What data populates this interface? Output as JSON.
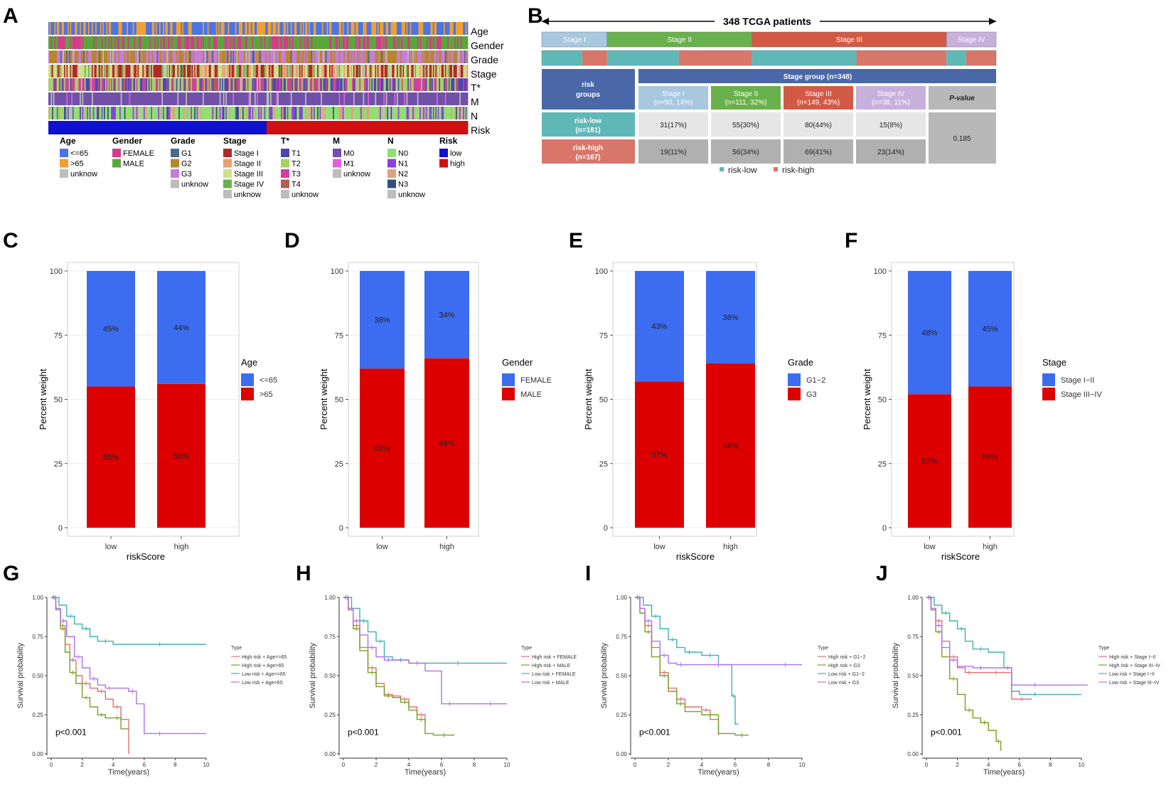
{
  "panel_labels": [
    "A",
    "B",
    "C",
    "D",
    "E",
    "F",
    "G",
    "H",
    "I",
    "J"
  ],
  "heatmap": {
    "rows": [
      "Age",
      "Gender",
      "Grade",
      "Stage",
      "T*",
      "M",
      "N",
      "Risk"
    ],
    "legend": [
      {
        "title": "Age",
        "items": [
          {
            "label": "<=65",
            "color": "#4a74e8"
          },
          {
            "label": ">65",
            "color": "#f0a030"
          },
          {
            "label": "unknow",
            "color": "#bdbdbd"
          }
        ]
      },
      {
        "title": "Gender",
        "items": [
          {
            "label": "FEMALE",
            "color": "#d63a8c"
          },
          {
            "label": "MALE",
            "color": "#5aa63a"
          }
        ]
      },
      {
        "title": "Grade",
        "items": [
          {
            "label": "G1",
            "color": "#4a6a8a"
          },
          {
            "label": "G2",
            "color": "#b8862a"
          },
          {
            "label": "G3",
            "color": "#c77ddb"
          },
          {
            "label": "unknow",
            "color": "#bdbdbd"
          }
        ]
      },
      {
        "title": "Stage",
        "items": [
          {
            "label": "Stage I",
            "color": "#b02a2a"
          },
          {
            "label": "Stage II",
            "color": "#e8a070"
          },
          {
            "label": "Stage III",
            "color": "#cfe08a"
          },
          {
            "label": "Stage IV",
            "color": "#6ab04c"
          },
          {
            "label": "unknow",
            "color": "#bdbdbd"
          }
        ]
      },
      {
        "title": "T*",
        "items": [
          {
            "label": "T1",
            "color": "#4a4ab0"
          },
          {
            "label": "T2",
            "color": "#a8d060"
          },
          {
            "label": "T3",
            "color": "#d040a0"
          },
          {
            "label": "T4",
            "color": "#b06050"
          },
          {
            "label": "unknow",
            "color": "#bdbdbd"
          }
        ]
      },
      {
        "title": "M",
        "items": [
          {
            "label": "M0",
            "color": "#7050a8"
          },
          {
            "label": "M1",
            "color": "#e060e0"
          },
          {
            "label": "unknow",
            "color": "#bdbdbd"
          }
        ]
      },
      {
        "title": "N",
        "items": [
          {
            "label": "N0",
            "color": "#90e070"
          },
          {
            "label": "N1",
            "color": "#8a40e0"
          },
          {
            "label": "N2",
            "color": "#e0a080"
          },
          {
            "label": "N3",
            "color": "#305080"
          },
          {
            "label": "unknow",
            "color": "#bdbdbd"
          }
        ]
      },
      {
        "title": "Risk",
        "items": [
          {
            "label": "low",
            "color": "#1010d0"
          },
          {
            "label": "high",
            "color": "#d01010"
          }
        ]
      }
    ]
  },
  "table_panel": {
    "title": "348 TCGA patients",
    "stages": [
      "Stage I",
      "Stage II",
      "Stage III",
      "Stage IV"
    ],
    "stage_counts": [
      50,
      111,
      149,
      38
    ],
    "risk_groups_label": "risk\ngroups",
    "stage_group_label": "Stage group (n=348)",
    "columns": [
      "Stage I\n(n=50, 14%)",
      "Stage II\n(n=111, 32%)",
      "Stage III\n(n=149, 43%)",
      "Stage IV\n(n=38, 11%)"
    ],
    "pvalue_label": "P-value",
    "rows": [
      {
        "label": "risk-low\n(n=181)",
        "cells": [
          "31(17%)",
          "55(30%)",
          "80(44%)",
          "15(8%)"
        ]
      },
      {
        "label": "risk-high\n(n=167)",
        "cells": [
          "19(11%)",
          "56(34%)",
          "69(41%)",
          "23(14%)"
        ]
      }
    ],
    "pvalue": "0.185",
    "legend": [
      "risk-low",
      "risk-high"
    ],
    "risk_split": [
      [
        31,
        19
      ],
      [
        55,
        56
      ],
      [
        80,
        69
      ],
      [
        15,
        23
      ]
    ]
  },
  "chart_data": [
    {
      "type": "bar",
      "panel": "C",
      "stacked": true,
      "categories": [
        "low",
        "high"
      ],
      "xlabel": "riskScore",
      "ylabel": "Percent weight",
      "ylim": [
        0,
        100
      ],
      "yticks": [
        0,
        25,
        50,
        75,
        100
      ],
      "legend_title": "Age",
      "series": [
        {
          "name": "<=65",
          "color": "#3c6cf0",
          "values": [
            45,
            44
          ]
        },
        {
          "name": ">65",
          "color": "#dd0000",
          "values": [
            55,
            56
          ]
        }
      ]
    },
    {
      "type": "bar",
      "panel": "D",
      "stacked": true,
      "categories": [
        "low",
        "high"
      ],
      "xlabel": "",
      "ylabel": "Percent weight",
      "ylim": [
        0,
        100
      ],
      "yticks": [
        0,
        25,
        50,
        75,
        100
      ],
      "legend_title": "Gender",
      "series": [
        {
          "name": "FEMALE",
          "color": "#3c6cf0",
          "values": [
            38,
            34
          ]
        },
        {
          "name": "MALE",
          "color": "#dd0000",
          "values": [
            62,
            66
          ]
        }
      ]
    },
    {
      "type": "bar",
      "panel": "E",
      "stacked": true,
      "categories": [
        "low",
        "high"
      ],
      "xlabel": "riskScore",
      "ylabel": "Percent weight",
      "ylim": [
        0,
        100
      ],
      "yticks": [
        0,
        25,
        50,
        75,
        100
      ],
      "legend_title": "Grade",
      "series": [
        {
          "name": "G1−2",
          "color": "#3c6cf0",
          "values": [
            43,
            36
          ]
        },
        {
          "name": "G3",
          "color": "#dd0000",
          "values": [
            57,
            64
          ]
        }
      ]
    },
    {
      "type": "bar",
      "panel": "F",
      "stacked": true,
      "categories": [
        "low",
        "high"
      ],
      "xlabel": "riskScore",
      "ylabel": "Percent weight",
      "ylim": [
        0,
        100
      ],
      "yticks": [
        0,
        25,
        50,
        75,
        100
      ],
      "legend_title": "Stage",
      "series": [
        {
          "name": "Stage I−II",
          "color": "#3c6cf0",
          "values": [
            48,
            45
          ]
        },
        {
          "name": "Stage III−IV",
          "color": "#dd0000",
          "values": [
            52,
            55
          ]
        }
      ]
    },
    {
      "type": "line",
      "panel": "G",
      "step": true,
      "xlabel": "Time(years)",
      "ylabel": "Survival probability",
      "xlim": [
        0,
        10
      ],
      "ylim": [
        0,
        1
      ],
      "xticks": [
        0,
        2,
        4,
        6,
        8,
        10
      ],
      "yticks": [
        "0.00",
        "0.25",
        "0.50",
        "0.75",
        "1.00"
      ],
      "legend_title": "Type",
      "pvalue": "p<0.001",
      "series": [
        {
          "name": "High risk + Age<=65",
          "color": "#e07070",
          "x": [
            0,
            0.3,
            0.6,
            0.9,
            1.2,
            1.6,
            2,
            2.5,
            3,
            3.5,
            4,
            4.5,
            5
          ],
          "y": [
            1,
            0.93,
            0.82,
            0.7,
            0.6,
            0.5,
            0.45,
            0.42,
            0.4,
            0.35,
            0.3,
            0.22,
            0
          ]
        },
        {
          "name": "High risk + Age>65",
          "color": "#7aa020",
          "x": [
            0,
            0.3,
            0.6,
            0.9,
            1.2,
            1.6,
            2,
            2.5,
            3,
            3.5,
            4,
            4.5,
            5
          ],
          "y": [
            1,
            0.92,
            0.8,
            0.65,
            0.52,
            0.45,
            0.36,
            0.3,
            0.25,
            0.23,
            0.23,
            0.16,
            0.16
          ]
        },
        {
          "name": "Low risk + Age<=65",
          "color": "#40b0b0",
          "x": [
            0,
            0.5,
            1,
            1.5,
            2,
            2.5,
            3,
            4,
            6,
            8,
            10
          ],
          "y": [
            1,
            0.95,
            0.88,
            0.83,
            0.8,
            0.75,
            0.72,
            0.7,
            0.7,
            0.7,
            0.7
          ]
        },
        {
          "name": "Low risk + Age>65",
          "color": "#b070f0",
          "x": [
            0,
            0.3,
            0.6,
            1,
            1.5,
            2,
            2.5,
            3,
            3.5,
            4,
            5,
            5.5,
            6,
            8,
            10
          ],
          "y": [
            1,
            0.93,
            0.85,
            0.75,
            0.62,
            0.55,
            0.48,
            0.44,
            0.42,
            0.42,
            0.4,
            0.32,
            0.13,
            0.13,
            0.13
          ]
        }
      ]
    },
    {
      "type": "line",
      "panel": "H",
      "step": true,
      "xlabel": "Time(years)",
      "ylabel": "Survival probability",
      "xlim": [
        0,
        10
      ],
      "ylim": [
        0,
        1
      ],
      "xticks": [
        0,
        2,
        4,
        6,
        8,
        10
      ],
      "yticks": [
        "0.00",
        "0.25",
        "0.50",
        "0.75",
        "1.00"
      ],
      "legend_title": "Type",
      "pvalue": "p<0.001",
      "series": [
        {
          "name": "High risk + FEMALE",
          "color": "#e07070",
          "x": [
            0,
            0.3,
            0.6,
            1,
            1.5,
            2,
            2.5,
            3,
            3.5,
            4,
            4.5,
            5
          ],
          "y": [
            1,
            0.93,
            0.82,
            0.68,
            0.55,
            0.45,
            0.38,
            0.37,
            0.35,
            0.3,
            0.25,
            0.2
          ]
        },
        {
          "name": "High risk + MALE",
          "color": "#7aa020",
          "x": [
            0,
            0.3,
            0.6,
            1,
            1.5,
            2,
            2.5,
            3,
            3.5,
            4,
            4.5,
            5,
            5.5,
            6.8
          ],
          "y": [
            1,
            0.92,
            0.8,
            0.66,
            0.52,
            0.43,
            0.37,
            0.36,
            0.33,
            0.28,
            0.22,
            0.13,
            0.12,
            0.12
          ]
        },
        {
          "name": "Low risk + FEMALE",
          "color": "#40b0b0",
          "x": [
            0,
            0.5,
            1,
            1.5,
            2,
            2.5,
            3,
            4,
            6,
            8,
            10
          ],
          "y": [
            1,
            0.93,
            0.85,
            0.78,
            0.72,
            0.62,
            0.6,
            0.58,
            0.58,
            0.58,
            0.58
          ]
        },
        {
          "name": "Low risk + MALE",
          "color": "#b070f0",
          "x": [
            0,
            0.3,
            0.6,
            1,
            1.5,
            2,
            2.5,
            3,
            4,
            5,
            6,
            7,
            8,
            10
          ],
          "y": [
            1,
            0.93,
            0.85,
            0.76,
            0.68,
            0.62,
            0.6,
            0.6,
            0.58,
            0.53,
            0.32,
            0.32,
            0.32,
            0.32
          ]
        }
      ]
    },
    {
      "type": "line",
      "panel": "I",
      "step": true,
      "xlabel": "Time(years)",
      "ylabel": "Survival probability",
      "xlim": [
        0,
        10
      ],
      "ylim": [
        0,
        1
      ],
      "xticks": [
        0,
        2,
        4,
        6,
        8,
        10
      ],
      "yticks": [
        "0.00",
        "0.25",
        "0.50",
        "0.75",
        "1.00"
      ],
      "legend_title": "Type",
      "pvalue": "p<0.001",
      "series": [
        {
          "name": "High risk + G1−2",
          "color": "#e07070",
          "x": [
            0,
            0.3,
            0.6,
            1,
            1.5,
            2,
            2.5,
            3,
            4,
            4.5,
            5
          ],
          "y": [
            1,
            0.93,
            0.82,
            0.68,
            0.52,
            0.42,
            0.35,
            0.3,
            0.28,
            0.22,
            0.12
          ]
        },
        {
          "name": "High risk + G3",
          "color": "#7aa020",
          "x": [
            0,
            0.3,
            0.6,
            1,
            1.5,
            2,
            2.5,
            3,
            4,
            5,
            6,
            6.8
          ],
          "y": [
            1,
            0.9,
            0.78,
            0.62,
            0.5,
            0.4,
            0.32,
            0.27,
            0.25,
            0.13,
            0.12,
            0.12
          ]
        },
        {
          "name": "Low risk + G1−2",
          "color": "#40b0b0",
          "x": [
            0,
            0.5,
            1,
            1.5,
            2,
            2.5,
            3,
            3.5,
            4,
            5,
            5.8,
            6,
            6.2
          ],
          "y": [
            1,
            0.95,
            0.88,
            0.8,
            0.73,
            0.68,
            0.65,
            0.65,
            0.63,
            0.57,
            0.37,
            0.19,
            0.19
          ]
        },
        {
          "name": "Low risk + G3",
          "color": "#b070f0",
          "x": [
            0,
            0.3,
            0.6,
            1,
            1.5,
            2,
            2.5,
            3,
            4,
            6,
            8,
            10
          ],
          "y": [
            1,
            0.93,
            0.85,
            0.72,
            0.63,
            0.58,
            0.57,
            0.57,
            0.57,
            0.57,
            0.57,
            0.57
          ]
        }
      ]
    },
    {
      "type": "line",
      "panel": "J",
      "step": true,
      "xlabel": "Time(years)",
      "ylabel": "Survival probability",
      "xlim": [
        0,
        10
      ],
      "ylim": [
        0,
        1
      ],
      "xticks": [
        0,
        2,
        4,
        6,
        8,
        10
      ],
      "yticks": [
        "0.00",
        "0.25",
        "0.50",
        "0.75",
        "1.00"
      ],
      "legend_title": "Type",
      "pvalue": "p<0.001",
      "series": [
        {
          "name": "High risk + Stage I−II",
          "color": "#e07070",
          "x": [
            0,
            0.3,
            0.6,
            1,
            1.5,
            2,
            2.5,
            3,
            4,
            5,
            5.5,
            6.8
          ],
          "y": [
            1,
            0.93,
            0.85,
            0.72,
            0.62,
            0.55,
            0.52,
            0.52,
            0.52,
            0.52,
            0.35,
            0.35
          ]
        },
        {
          "name": "High risk + Stage III−IV",
          "color": "#7aa020",
          "x": [
            0,
            0.3,
            0.6,
            1,
            1.5,
            2,
            2.5,
            3,
            3.5,
            4,
            4.5,
            4.8
          ],
          "y": [
            1,
            0.92,
            0.78,
            0.62,
            0.48,
            0.38,
            0.28,
            0.23,
            0.2,
            0.15,
            0.08,
            0.02
          ]
        },
        {
          "name": "Low risk + Stage I−II",
          "color": "#40b0b0",
          "x": [
            0,
            0.5,
            1,
            1.5,
            2,
            2.5,
            3,
            4,
            5,
            5.5,
            6,
            8,
            10
          ],
          "y": [
            1,
            0.95,
            0.9,
            0.85,
            0.8,
            0.72,
            0.67,
            0.65,
            0.55,
            0.4,
            0.38,
            0.38,
            0.38
          ]
        },
        {
          "name": "Low risk + Stage III−IV",
          "color": "#b070f0",
          "x": [
            0,
            0.3,
            0.6,
            1,
            1.5,
            2,
            3,
            4,
            5,
            5.5,
            6,
            8,
            10.4
          ],
          "y": [
            1,
            0.93,
            0.82,
            0.68,
            0.6,
            0.56,
            0.55,
            0.55,
            0.55,
            0.44,
            0.44,
            0.44,
            0.44
          ]
        }
      ]
    }
  ]
}
